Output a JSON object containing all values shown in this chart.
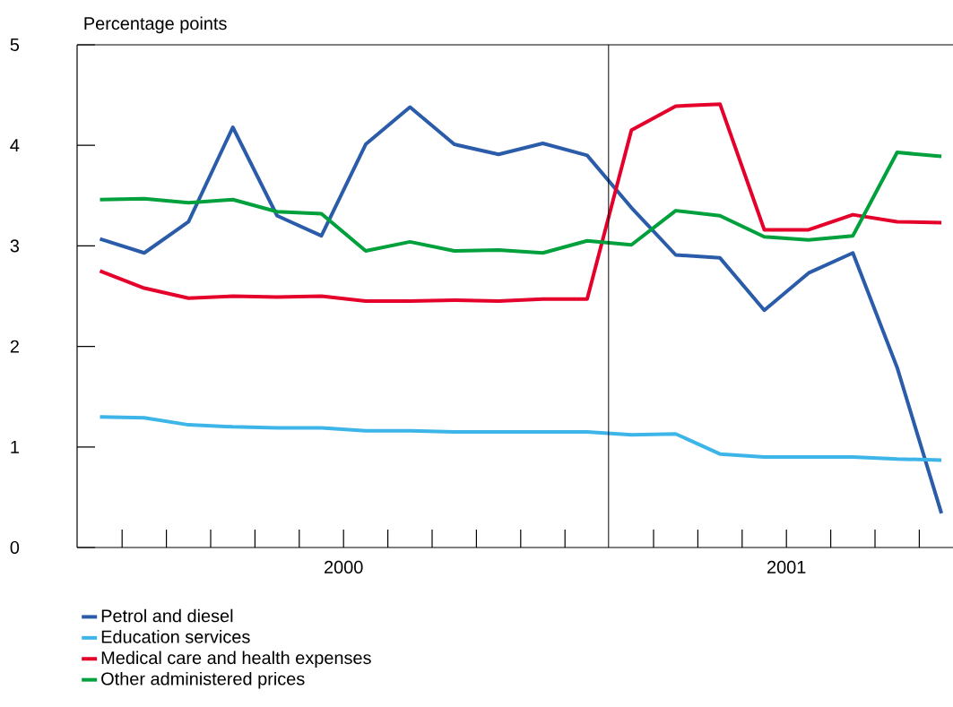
{
  "chart_data": {
    "type": "line",
    "ylabel": "Percentage points",
    "x": [
      "2000-01",
      "2000-02",
      "2000-03",
      "2000-04",
      "2000-05",
      "2000-06",
      "2000-07",
      "2000-08",
      "2000-09",
      "2000-10",
      "2000-11",
      "2000-12",
      "2001-01",
      "2001-02",
      "2001-03",
      "2001-04",
      "2001-05",
      "2001-06",
      "2001-07",
      "2001-08"
    ],
    "xlim": [
      "1999-12-16",
      "2001-08-10"
    ],
    "xticks": [
      {
        "value": "2000-06-16",
        "label": "2000"
      },
      {
        "value": "2001-04-16",
        "label": "2001"
      }
    ],
    "ylim": [
      0,
      5
    ],
    "yticks": [
      0,
      1,
      2,
      3,
      4,
      5
    ],
    "ref_lines": [
      {
        "axis": "x",
        "value": "2000-12-16",
        "color": "#000000"
      }
    ],
    "grid": false,
    "legend": "bottom left",
    "marker": "none",
    "line_style": "solid",
    "series": [
      {
        "name": "Petrol and diesel",
        "color": "#2a5caa",
        "values": [
          3.07,
          2.93,
          3.24,
          4.18,
          3.3,
          3.1,
          4.01,
          4.38,
          4.01,
          3.91,
          4.02,
          3.9,
          3.38,
          2.91,
          2.88,
          2.36,
          2.73,
          2.93,
          1.79,
          0.34
        ]
      },
      {
        "name": "Education services",
        "color": "#3db5e8",
        "values": [
          1.3,
          1.29,
          1.22,
          1.2,
          1.19,
          1.19,
          1.16,
          1.16,
          1.15,
          1.15,
          1.15,
          1.15,
          1.12,
          1.13,
          0.93,
          0.9,
          0.9,
          0.9,
          0.88,
          0.87
        ]
      },
      {
        "name": "Medical care and health expenses",
        "color": "#e4002b",
        "values": [
          2.75,
          2.58,
          2.48,
          2.5,
          2.49,
          2.5,
          2.45,
          2.45,
          2.46,
          2.45,
          2.47,
          2.47,
          4.15,
          4.39,
          4.41,
          3.16,
          3.16,
          3.31,
          3.24,
          3.23
        ]
      },
      {
        "name": "Other administered prices",
        "color": "#00a03c",
        "values": [
          3.46,
          3.47,
          3.43,
          3.46,
          3.34,
          3.32,
          2.95,
          3.04,
          2.95,
          2.96,
          2.93,
          3.05,
          3.01,
          3.35,
          3.3,
          3.09,
          3.06,
          3.1,
          3.93,
          3.89
        ]
      }
    ]
  }
}
